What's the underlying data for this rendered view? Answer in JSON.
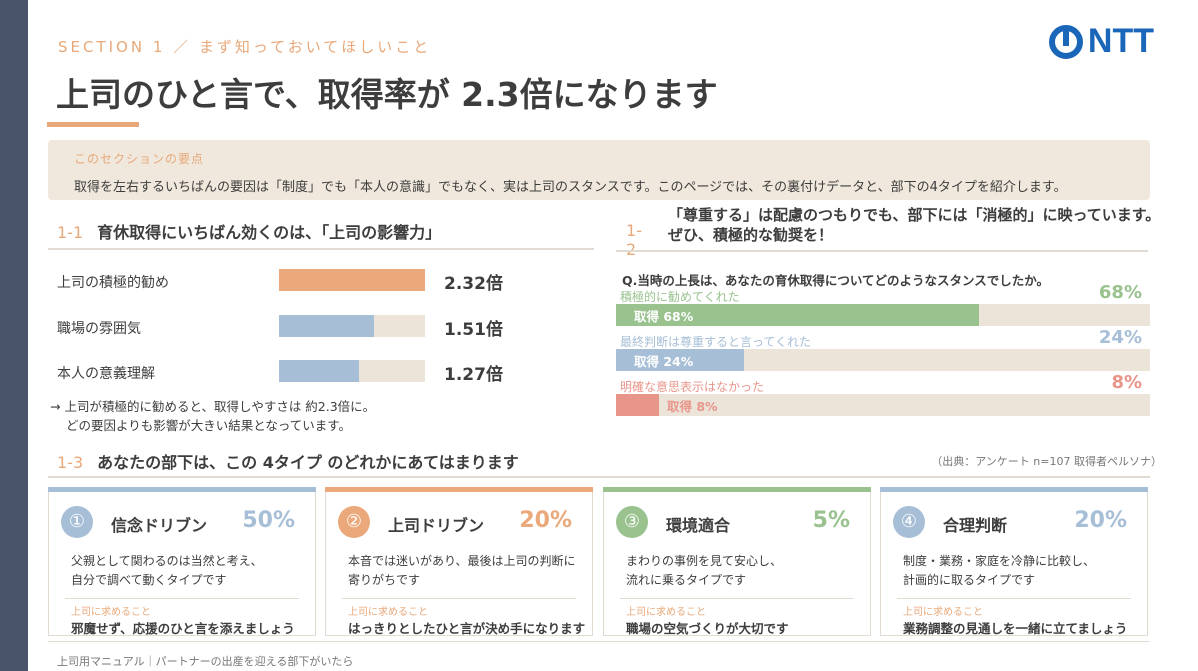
{
  "header": {
    "eyebrow": "SECTION 1 ／ まず知っておいてほしいこと",
    "logo_text": "NTT",
    "title": "上司のひと言で、取得率が 2.3倍になります"
  },
  "summary": {
    "label": "このセクションの要点",
    "text": "取得を左右するいちばんの要因は「制度」でも「本人の意識」でもなく、実は上司のスタンスです。このページでは、その裏付けデータと、部下の4タイプを紹介します。"
  },
  "section_1_1": {
    "num": "1-1",
    "title": "育休取得にいちばん効くのは、「上司の影響力」",
    "bars": [
      {
        "label": "上司の積極的勧め",
        "value": 2.32,
        "value_label": "2.32倍",
        "color": "#eba87b"
      },
      {
        "label": "職場の雰囲気",
        "value": 1.51,
        "value_label": "1.51倍",
        "color": "#a6bed6"
      },
      {
        "label": "本人の意義理解",
        "value": 1.27,
        "value_label": "1.27倍",
        "color": "#a6bed6"
      }
    ],
    "bar_max": 2.32,
    "note_line1": "→ 上司が積極的に勧めると、取得しやすさは 約2.3倍に。",
    "note_line2": "どの要因よりも影響が大きい結果となっています。"
  },
  "section_1_2": {
    "num": "1-2",
    "title_line1": "「尊重する」は配慮のつもりでも、部下には「消極的」に映っています。",
    "title_line2": "ぜひ、積極的な勧奨を！",
    "question": "Q.当時の上長は、あなたの育休取得についてどのようなスタンスでしたか。",
    "rows": [
      {
        "label": "積極的に勧めてくれた",
        "pct": "68%",
        "value": 68,
        "inner": "取得 68%",
        "color": "#99c28f",
        "label_color": "#99c28f"
      },
      {
        "label": "最終判断は尊重すると言ってくれた",
        "pct": "24%",
        "value": 24,
        "inner": "取得 24%",
        "color": "#a6bed6",
        "label_color": "#a6bed6"
      },
      {
        "label": "明確な意思表示はなかった",
        "pct": "8%",
        "value": 8,
        "inner": "取得 8%",
        "color": "#e8958a",
        "label_color": "#e8958a"
      }
    ]
  },
  "section_1_3": {
    "num": "1-3",
    "title": "あなたの部下は、この 4タイプ のどれかにあてはまります",
    "source": "（出典：アンケート n=107 取得者ペルソナ）",
    "cards": [
      {
        "num": "①",
        "name": "信念ドリブン",
        "pct": "50%",
        "desc1": "父親として関わるのは当然と考え、",
        "desc2": "自分で調べて動くタイプです",
        "req": "上司に求めること",
        "msg": "邪魔せず、応援のひと言を添えましょう",
        "color": "#a6bed6"
      },
      {
        "num": "②",
        "name": "上司ドリブン",
        "pct": "20%",
        "desc1": "本音では迷いがあり、最後は上司の判断に",
        "desc2": "寄りがちです",
        "req": "上司に求めること",
        "msg": "はっきりとしたひと言が決め手になります",
        "color": "#eba87b"
      },
      {
        "num": "③",
        "name": "環境適合",
        "pct": "5%",
        "desc1": "まわりの事例を見て安心し、",
        "desc2": "流れに乗るタイプです",
        "req": "上司に求めること",
        "msg": "職場の空気づくりが大切です",
        "color": "#99c28f"
      },
      {
        "num": "④",
        "name": "合理判断",
        "pct": "20%",
        "desc1": "制度・業務・家庭を冷静に比較し、",
        "desc2": "計画的に取るタイプです",
        "req": "上司に求めること",
        "msg": "業務調整の見通しを一緒に立てましょう",
        "color": "#a6bed6"
      }
    ]
  },
  "footer": {
    "text": "上司用マニュアル｜パートナーの出産を迎える部下がいたら"
  }
}
